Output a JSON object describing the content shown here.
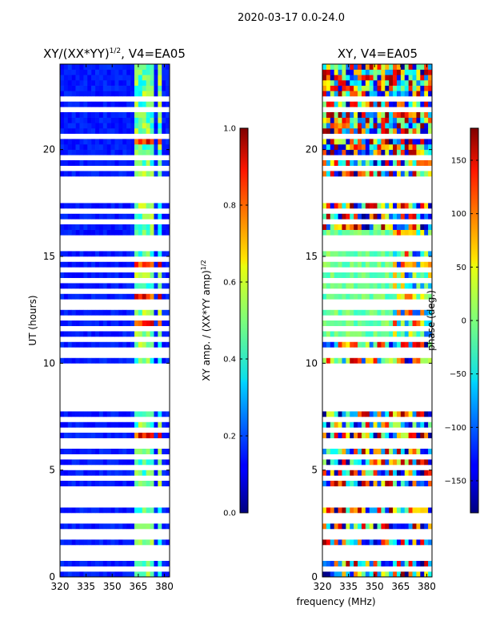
{
  "figure": {
    "suptitle": "2020-03-17 0.0-24.0",
    "xlabel_shared": "frequency (MHz)"
  },
  "chart_data": [
    {
      "type": "heatmap",
      "title_main": "XY/(XX*YY)",
      "title_exp": "1/2",
      "title_tail": ", V4=EA05",
      "ylabel": "UT (hours)",
      "x_range": [
        320,
        383
      ],
      "y_range": [
        0,
        24
      ],
      "xticks": [
        320,
        335,
        350,
        365,
        380
      ],
      "yticks": [
        0,
        5,
        10,
        15,
        20
      ],
      "colormap": "jet",
      "colorbar": {
        "label_main": "XY amp. / (XX*YY amp)",
        "label_exp": "1/2",
        "range": [
          0.0,
          1.0
        ],
        "ticks": [
          "0.0",
          "0.2",
          "0.4",
          "0.6",
          "0.8",
          "1.0"
        ],
        "tick_values": [
          0.0,
          0.2,
          0.4,
          0.6,
          0.8,
          1.0
        ]
      },
      "blank_rows_ut": [
        0.45,
        0.85,
        1.1,
        1.45,
        1.95,
        2.15,
        2.5,
        2.9,
        3.3,
        3.6,
        3.95,
        4.15,
        4.6,
        5.2,
        5.7,
        6.05,
        6.4,
        6.9,
        7.4,
        7.75,
        8.0,
        8.25,
        8.5,
        8.65,
        8.8,
        9.05,
        9.35,
        9.6,
        9.75,
        10.25,
        10.6,
        11.1,
        11.7,
        12.2,
        12.55,
        12.75,
        13.35,
        13.8,
        14.4,
        14.8,
        15.3,
        15.55,
        15.85,
        16.5,
        16.6,
        17.05,
        17.5,
        17.75,
        18.05,
        18.3,
        18.7,
        19.05,
        19.2,
        19.65,
        20.55,
        21.9,
        22.45
      ],
      "bright_freq_columns_mhz": [
        [
          363.5,
          366.5
        ],
        [
          368,
          371
        ],
        [
          372.5,
          375
        ],
        [
          377,
          379.5
        ]
      ]
    },
    {
      "type": "heatmap",
      "title": "XY, V4=EA05",
      "ylabel": "",
      "x_range": [
        320,
        383
      ],
      "y_range": [
        0,
        24
      ],
      "xticks": [
        320,
        335,
        350,
        365,
        380
      ],
      "yticks": [
        0,
        5,
        10,
        15,
        20
      ],
      "colormap": "jet",
      "colorbar": {
        "label": "phase (deg.)",
        "range": [
          -180,
          180
        ],
        "ticks": [
          "−150",
          "−100",
          "−50",
          "0",
          "50",
          "100",
          "150"
        ],
        "tick_values": [
          -150,
          -100,
          -50,
          0,
          50,
          100,
          150
        ]
      },
      "blank_rows_ut": [
        0.45,
        0.85,
        1.1,
        1.45,
        1.95,
        2.15,
        2.5,
        2.9,
        3.3,
        3.6,
        3.95,
        4.15,
        4.6,
        5.2,
        5.7,
        6.05,
        6.4,
        6.9,
        7.4,
        7.75,
        8.0,
        8.25,
        8.5,
        8.65,
        8.8,
        9.05,
        9.35,
        9.6,
        9.75,
        10.25,
        10.6,
        11.1,
        11.7,
        12.2,
        12.55,
        12.75,
        13.35,
        13.8,
        14.4,
        14.8,
        15.3,
        15.55,
        15.85,
        16.5,
        16.6,
        17.05,
        17.5,
        17.75,
        18.05,
        18.3,
        18.7,
        19.05,
        19.2,
        19.65,
        20.55,
        21.9,
        22.45
      ]
    }
  ]
}
